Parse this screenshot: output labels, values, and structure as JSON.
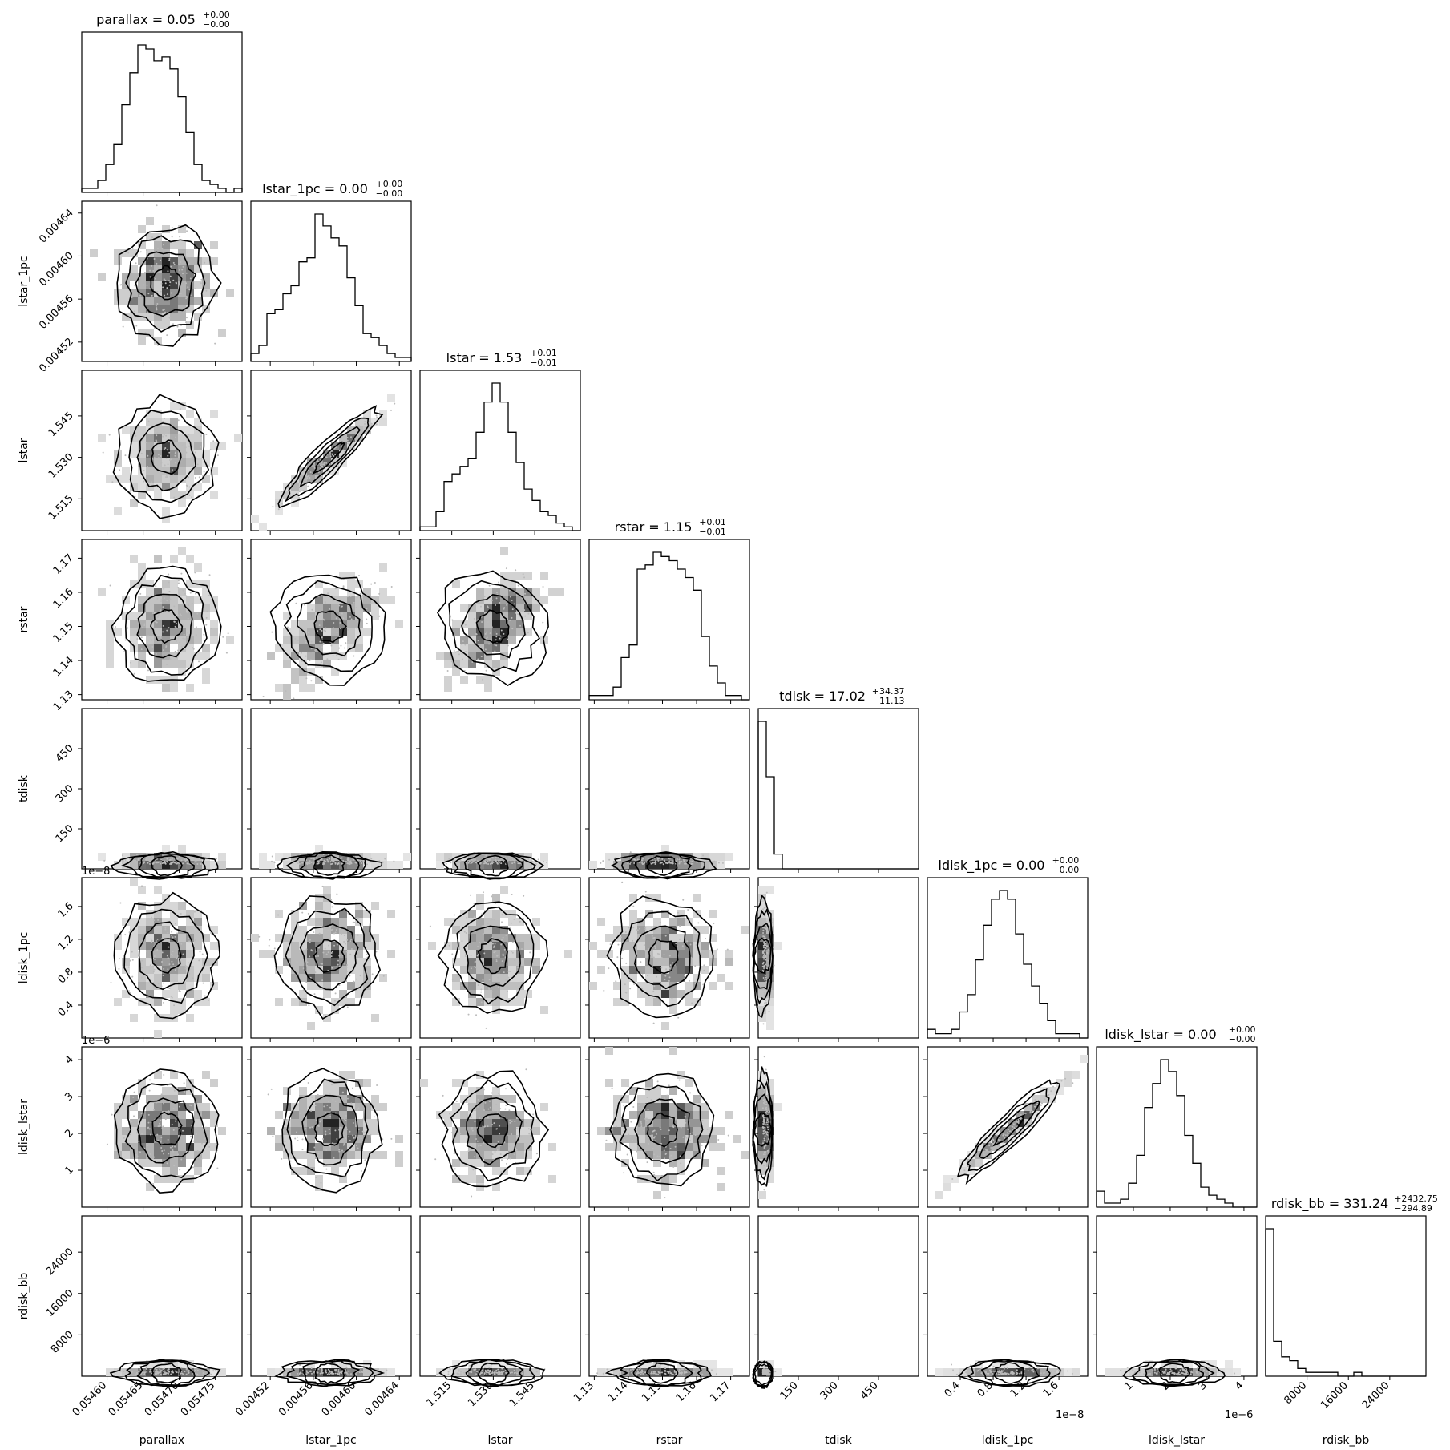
{
  "chart_data": {
    "type": "corner",
    "params": [
      "parallax",
      "lstar_1pc",
      "lstar",
      "rstar",
      "tdisk",
      "ldisk_1pc",
      "ldisk_lstar",
      "rdisk_bb"
    ],
    "titles": [
      {
        "name": "parallax",
        "value": "0.05",
        "plus": "+0.00",
        "minus": "−0.00"
      },
      {
        "name": "lstar_1pc",
        "value": "0.00",
        "plus": "+0.00",
        "minus": "−0.00"
      },
      {
        "name": "lstar",
        "value": "1.53",
        "plus": "+0.01",
        "minus": "−0.01"
      },
      {
        "name": "rstar",
        "value": "1.15",
        "plus": "+0.01",
        "minus": "−0.01"
      },
      {
        "name": "tdisk",
        "value": "17.02",
        "plus": "+34.37",
        "minus": "−11.13"
      },
      {
        "name": "ldisk_1pc",
        "value": "0.00",
        "plus": "+0.00",
        "minus": "−0.00"
      },
      {
        "name": "ldisk_lstar",
        "value": "0.00",
        "plus": "+0.00",
        "minus": "−0.00"
      },
      {
        "name": "rdisk_bb",
        "value": "331.24",
        "plus": "+2432.75",
        "minus": "−294.89"
      }
    ],
    "ranges": [
      [
        0.054565,
        0.054787
      ],
      [
        0.004502,
        0.004651
      ],
      [
        1.5035,
        1.5615
      ],
      [
        1.1285,
        1.1755
      ],
      [
        0,
        600
      ],
      [
        0,
        1.95
      ],
      [
        0,
        4.35
      ],
      [
        0,
        31000
      ]
    ],
    "ticks": [
      {
        "values": [
          0.0546,
          0.05465,
          0.0547,
          0.05475
        ],
        "labels": [
          "0.05460",
          "0.05465",
          "0.05470",
          "0.05475"
        ]
      },
      {
        "values": [
          0.00452,
          0.00456,
          0.0046,
          0.00464
        ],
        "labels": [
          "0.00452",
          "0.00456",
          "0.00460",
          "0.00464"
        ]
      },
      {
        "values": [
          1.515,
          1.53,
          1.545
        ],
        "labels": [
          "1.515",
          "1.530",
          "1.545"
        ]
      },
      {
        "values": [
          1.13,
          1.14,
          1.15,
          1.16,
          1.17
        ],
        "labels": [
          "1.13",
          "1.14",
          "1.15",
          "1.16",
          "1.17"
        ]
      },
      {
        "values": [
          150,
          300,
          450
        ],
        "labels": [
          "150",
          "300",
          "450"
        ]
      },
      {
        "values": [
          0.4,
          0.8,
          1.2,
          1.6
        ],
        "labels": [
          "0.4",
          "0.8",
          "1.2",
          "1.6"
        ]
      },
      {
        "values": [
          1,
          2,
          3,
          4
        ],
        "labels": [
          "1",
          "2",
          "3",
          "4"
        ]
      },
      {
        "values": [
          8000,
          16000,
          24000
        ],
        "labels": [
          "8000",
          "16000",
          "24000"
        ]
      }
    ],
    "offset_labels": [
      "",
      "",
      "",
      "",
      "",
      "1e−8",
      "1e−6",
      ""
    ],
    "centers": [
      0.054682,
      0.004575,
      1.53,
      1.15,
      17.02,
      1.0,
      2.1,
      331.24
    ],
    "sigmas": [
      3e-05,
      2.2e-05,
      0.0075,
      0.0075,
      25,
      0.3,
      0.6,
      1200
    ],
    "histograms": [
      [
        1,
        1,
        3,
        7,
        12,
        22,
        30,
        37,
        36,
        33,
        34,
        31,
        24,
        15,
        7,
        3,
        2,
        1,
        0,
        1
      ],
      [
        2,
        4,
        12,
        13,
        17,
        19,
        25,
        26,
        37,
        34,
        31,
        29,
        21,
        14,
        7,
        6,
        4,
        2,
        1,
        1
      ],
      [
        1,
        1,
        5,
        13,
        15,
        17,
        19,
        26,
        34,
        39,
        34,
        26,
        18,
        11,
        8,
        5,
        4,
        2,
        1,
        0
      ],
      [
        1,
        1,
        1,
        3,
        10,
        13,
        31,
        32,
        35,
        34,
        33,
        31,
        29,
        26,
        15,
        8,
        4,
        1,
        1,
        0
      ],
      [
        40,
        25,
        4,
        0,
        0,
        0,
        0,
        0,
        0,
        0,
        0,
        0,
        0,
        0,
        0,
        0,
        0,
        0,
        0,
        0
      ],
      [
        2,
        1,
        1,
        2,
        6,
        10,
        18,
        26,
        32,
        34,
        32,
        24,
        17,
        12,
        8,
        4,
        1,
        1,
        1,
        0
      ],
      [
        4,
        1,
        1,
        2,
        6,
        13,
        25,
        31,
        37,
        34,
        28,
        18,
        11,
        5,
        3,
        2,
        1,
        0,
        0,
        0
      ],
      [
        38,
        9,
        5,
        4,
        2,
        1,
        1,
        1,
        1,
        0,
        0,
        1,
        0,
        0,
        0,
        0,
        0,
        0,
        0,
        0
      ]
    ],
    "correlations": {
      "1-2": 0.97,
      "1-3": 0.6,
      "2-3": 0.62,
      "5-6": 0.99
    },
    "grid": false
  }
}
